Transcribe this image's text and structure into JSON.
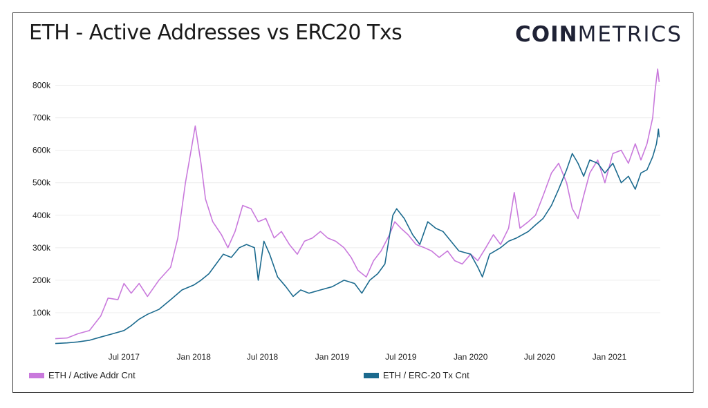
{
  "title": "ETH - Active Addresses vs ERC20 Txs",
  "logo": {
    "bold": "COIN",
    "light": "METRICS"
  },
  "colors": {
    "active": "#c979dc",
    "erc20": "#1b6a8e",
    "grid": "#ececec"
  },
  "chart_data": {
    "type": "line",
    "title": "ETH - Active Addresses vs ERC20 Txs",
    "xlabel": "",
    "ylabel": "",
    "ylim": [
      0,
      850000
    ],
    "y_ticks": [
      {
        "v": 100000,
        "label": "100k"
      },
      {
        "v": 200000,
        "label": "200k"
      },
      {
        "v": 300000,
        "label": "300k"
      },
      {
        "v": 400000,
        "label": "400k"
      },
      {
        "v": 500000,
        "label": "500k"
      },
      {
        "v": 600000,
        "label": "600k"
      },
      {
        "v": 700000,
        "label": "700k"
      },
      {
        "v": 800000,
        "label": "800k"
      }
    ],
    "x_range": [
      "2017-01-01",
      "2021-05-15"
    ],
    "x_ticks": [
      {
        "date": "2017-07-01",
        "label": "Jul 2017"
      },
      {
        "date": "2018-01-01",
        "label": "Jan 2018"
      },
      {
        "date": "2018-07-01",
        "label": "Jul 2018"
      },
      {
        "date": "2019-01-01",
        "label": "Jan 2019"
      },
      {
        "date": "2019-07-01",
        "label": "Jul 2019"
      },
      {
        "date": "2020-01-01",
        "label": "Jan 2020"
      },
      {
        "date": "2020-07-01",
        "label": "Jul 2020"
      },
      {
        "date": "2021-01-01",
        "label": "Jan 2021"
      }
    ],
    "grid": true,
    "legend": "bottom",
    "series": [
      {
        "name": "ETH / Active Addr Cnt",
        "points": [
          [
            "2017-01-01",
            20000
          ],
          [
            "2017-02-01",
            22000
          ],
          [
            "2017-03-01",
            35000
          ],
          [
            "2017-04-01",
            45000
          ],
          [
            "2017-05-01",
            90000
          ],
          [
            "2017-05-20",
            145000
          ],
          [
            "2017-06-15",
            140000
          ],
          [
            "2017-07-01",
            190000
          ],
          [
            "2017-07-20",
            160000
          ],
          [
            "2017-08-10",
            190000
          ],
          [
            "2017-09-01",
            150000
          ],
          [
            "2017-10-01",
            200000
          ],
          [
            "2017-11-01",
            240000
          ],
          [
            "2017-11-20",
            330000
          ],
          [
            "2017-12-10",
            500000
          ],
          [
            "2017-12-25",
            600000
          ],
          [
            "2018-01-05",
            675000
          ],
          [
            "2018-01-20",
            560000
          ],
          [
            "2018-02-01",
            450000
          ],
          [
            "2018-02-20",
            380000
          ],
          [
            "2018-03-15",
            340000
          ],
          [
            "2018-04-01",
            300000
          ],
          [
            "2018-04-20",
            350000
          ],
          [
            "2018-05-10",
            430000
          ],
          [
            "2018-06-01",
            420000
          ],
          [
            "2018-06-20",
            380000
          ],
          [
            "2018-07-10",
            390000
          ],
          [
            "2018-08-01",
            330000
          ],
          [
            "2018-08-20",
            350000
          ],
          [
            "2018-09-10",
            310000
          ],
          [
            "2018-10-01",
            280000
          ],
          [
            "2018-10-20",
            320000
          ],
          [
            "2018-11-10",
            330000
          ],
          [
            "2018-12-01",
            350000
          ],
          [
            "2018-12-20",
            330000
          ],
          [
            "2019-01-10",
            320000
          ],
          [
            "2019-02-01",
            300000
          ],
          [
            "2019-02-20",
            270000
          ],
          [
            "2019-03-10",
            230000
          ],
          [
            "2019-04-01",
            210000
          ],
          [
            "2019-04-20",
            260000
          ],
          [
            "2019-05-10",
            290000
          ],
          [
            "2019-06-01",
            340000
          ],
          [
            "2019-06-15",
            380000
          ],
          [
            "2019-07-01",
            360000
          ],
          [
            "2019-07-20",
            340000
          ],
          [
            "2019-08-10",
            310000
          ],
          [
            "2019-09-01",
            300000
          ],
          [
            "2019-09-20",
            290000
          ],
          [
            "2019-10-10",
            270000
          ],
          [
            "2019-11-01",
            290000
          ],
          [
            "2019-11-20",
            260000
          ],
          [
            "2019-12-10",
            250000
          ],
          [
            "2020-01-01",
            280000
          ],
          [
            "2020-01-20",
            260000
          ],
          [
            "2020-02-10",
            300000
          ],
          [
            "2020-03-01",
            340000
          ],
          [
            "2020-03-20",
            310000
          ],
          [
            "2020-04-10",
            360000
          ],
          [
            "2020-04-25",
            470000
          ],
          [
            "2020-05-10",
            360000
          ],
          [
            "2020-06-01",
            380000
          ],
          [
            "2020-06-20",
            400000
          ],
          [
            "2020-07-10",
            460000
          ],
          [
            "2020-08-01",
            530000
          ],
          [
            "2020-08-20",
            560000
          ],
          [
            "2020-09-10",
            500000
          ],
          [
            "2020-09-25",
            420000
          ],
          [
            "2020-10-10",
            390000
          ],
          [
            "2020-10-25",
            460000
          ],
          [
            "2020-11-10",
            530000
          ],
          [
            "2020-12-01",
            570000
          ],
          [
            "2020-12-20",
            500000
          ],
          [
            "2021-01-10",
            590000
          ],
          [
            "2021-02-01",
            600000
          ],
          [
            "2021-02-20",
            560000
          ],
          [
            "2021-03-10",
            620000
          ],
          [
            "2021-03-25",
            570000
          ],
          [
            "2021-04-10",
            620000
          ],
          [
            "2021-04-25",
            700000
          ],
          [
            "2021-05-01",
            780000
          ],
          [
            "2021-05-08",
            850000
          ],
          [
            "2021-05-12",
            810000
          ]
        ]
      },
      {
        "name": "ETH / ERC-20 Tx Cnt",
        "points": [
          [
            "2017-01-01",
            5000
          ],
          [
            "2017-02-01",
            7000
          ],
          [
            "2017-03-01",
            10000
          ],
          [
            "2017-04-01",
            15000
          ],
          [
            "2017-05-01",
            25000
          ],
          [
            "2017-06-01",
            35000
          ],
          [
            "2017-07-01",
            45000
          ],
          [
            "2017-07-20",
            60000
          ],
          [
            "2017-08-10",
            80000
          ],
          [
            "2017-09-01",
            95000
          ],
          [
            "2017-10-01",
            110000
          ],
          [
            "2017-11-01",
            140000
          ],
          [
            "2017-12-01",
            170000
          ],
          [
            "2018-01-01",
            185000
          ],
          [
            "2018-01-20",
            200000
          ],
          [
            "2018-02-10",
            220000
          ],
          [
            "2018-03-01",
            250000
          ],
          [
            "2018-03-20",
            280000
          ],
          [
            "2018-04-10",
            270000
          ],
          [
            "2018-05-01",
            300000
          ],
          [
            "2018-05-20",
            310000
          ],
          [
            "2018-06-10",
            300000
          ],
          [
            "2018-06-20",
            200000
          ],
          [
            "2018-07-05",
            320000
          ],
          [
            "2018-07-20",
            280000
          ],
          [
            "2018-08-10",
            210000
          ],
          [
            "2018-09-01",
            180000
          ],
          [
            "2018-09-20",
            150000
          ],
          [
            "2018-10-10",
            170000
          ],
          [
            "2018-11-01",
            160000
          ],
          [
            "2018-12-01",
            170000
          ],
          [
            "2019-01-01",
            180000
          ],
          [
            "2019-02-01",
            200000
          ],
          [
            "2019-03-01",
            190000
          ],
          [
            "2019-03-20",
            160000
          ],
          [
            "2019-04-10",
            200000
          ],
          [
            "2019-05-01",
            220000
          ],
          [
            "2019-05-20",
            250000
          ],
          [
            "2019-06-10",
            400000
          ],
          [
            "2019-06-20",
            420000
          ],
          [
            "2019-07-10",
            390000
          ],
          [
            "2019-08-01",
            340000
          ],
          [
            "2019-08-20",
            310000
          ],
          [
            "2019-09-10",
            380000
          ],
          [
            "2019-10-01",
            360000
          ],
          [
            "2019-10-20",
            350000
          ],
          [
            "2019-11-10",
            320000
          ],
          [
            "2019-12-01",
            290000
          ],
          [
            "2020-01-01",
            280000
          ],
          [
            "2020-01-20",
            240000
          ],
          [
            "2020-02-01",
            210000
          ],
          [
            "2020-02-20",
            280000
          ],
          [
            "2020-03-20",
            300000
          ],
          [
            "2020-04-10",
            320000
          ],
          [
            "2020-05-01",
            330000
          ],
          [
            "2020-06-01",
            350000
          ],
          [
            "2020-06-20",
            370000
          ],
          [
            "2020-07-10",
            390000
          ],
          [
            "2020-08-01",
            430000
          ],
          [
            "2020-08-20",
            480000
          ],
          [
            "2020-09-10",
            540000
          ],
          [
            "2020-09-25",
            590000
          ],
          [
            "2020-10-10",
            560000
          ],
          [
            "2020-10-25",
            520000
          ],
          [
            "2020-11-10",
            570000
          ],
          [
            "2020-12-01",
            560000
          ],
          [
            "2020-12-20",
            530000
          ],
          [
            "2021-01-10",
            560000
          ],
          [
            "2021-02-01",
            500000
          ],
          [
            "2021-02-20",
            520000
          ],
          [
            "2021-03-10",
            480000
          ],
          [
            "2021-03-25",
            530000
          ],
          [
            "2021-04-10",
            540000
          ],
          [
            "2021-04-25",
            580000
          ],
          [
            "2021-05-05",
            620000
          ],
          [
            "2021-05-10",
            665000
          ],
          [
            "2021-05-12",
            640000
          ]
        ]
      }
    ]
  }
}
